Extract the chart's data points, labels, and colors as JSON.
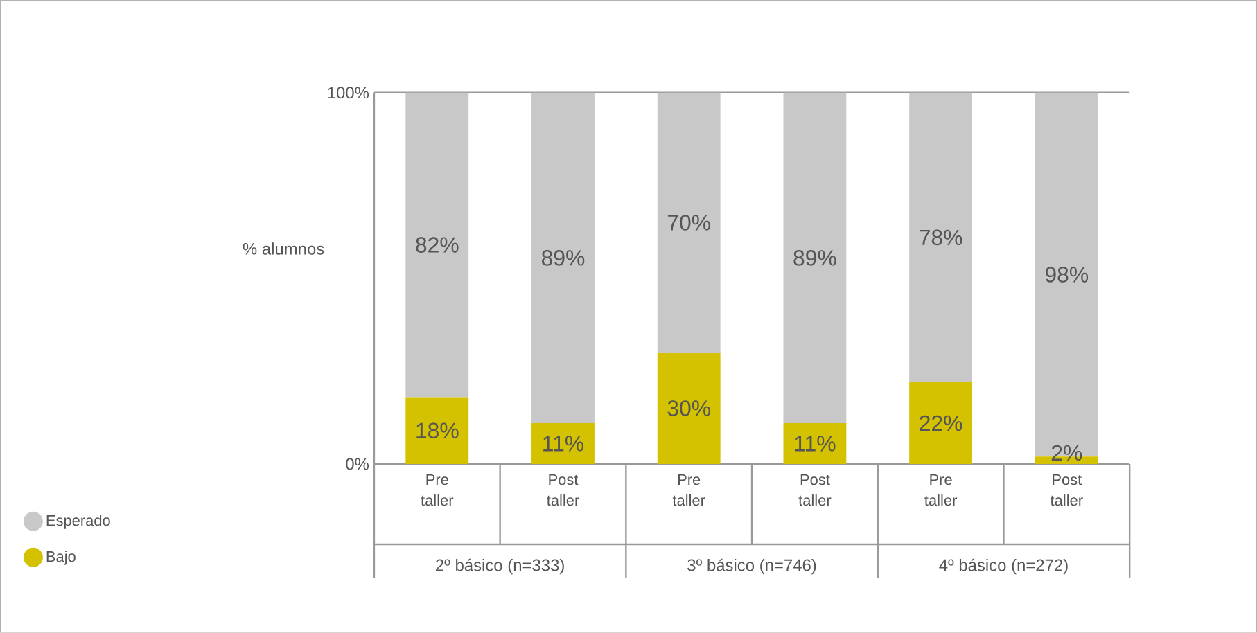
{
  "chart_data": {
    "type": "bar",
    "stacked": true,
    "ylabel": "% alumnos",
    "categories": [
      "Pre taller",
      "Post taller",
      "Pre taller",
      "Post taller",
      "Pre taller",
      "Post taller"
    ],
    "series": [
      {
        "name": "Bajo",
        "color": "#d4c100",
        "values": [
          18,
          11,
          30,
          11,
          22,
          2
        ],
        "value_labels": [
          "18%",
          "11%",
          "30%",
          "11%",
          "22%",
          "2%"
        ]
      },
      {
        "name": "Esperado",
        "color": "#c8c8c8",
        "values": [
          82,
          89,
          70,
          89,
          78,
          98
        ],
        "value_labels": [
          "82%",
          "89%",
          "70%",
          "89%",
          "78%",
          "98%"
        ]
      }
    ],
    "ylim": [
      0,
      100
    ],
    "yticks": [
      {
        "value": 0,
        "label": "0%"
      },
      {
        "value": 100,
        "label": "100%"
      }
    ],
    "legend": "bottom left",
    "annotations": [
      "2º básico (n=333)",
      "3º básico (n=746)",
      "4º básico (n=272)"
    ]
  }
}
